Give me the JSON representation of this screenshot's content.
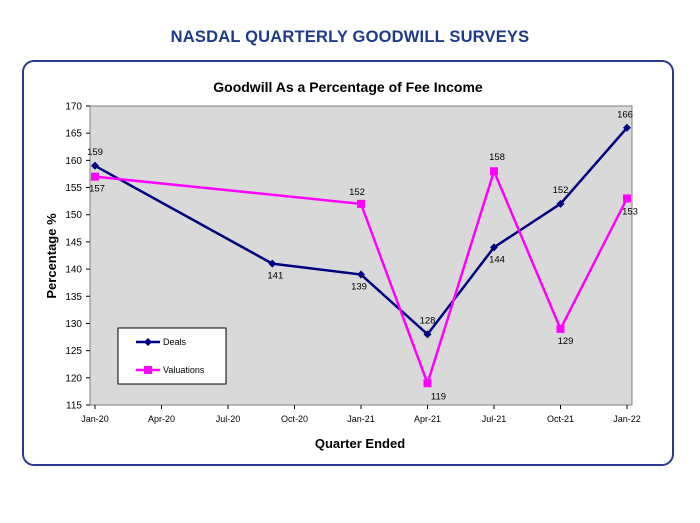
{
  "page": {
    "title": "NASDAL QUARTERLY GOODWILL SURVEYS"
  },
  "colors": {
    "title": "#1f3a8a",
    "frame_border": "#2b3a8c",
    "plot_bg": "#d9d9d9",
    "deals": "#000080",
    "valuations": "#ff00ff"
  },
  "chart_data": {
    "type": "line",
    "title": "Goodwill As a Percentage of Fee Income",
    "xlabel": "Quarter Ended",
    "ylabel": "Percentage %",
    "ylim": [
      115,
      170
    ],
    "yticks": [
      115,
      120,
      125,
      130,
      135,
      140,
      145,
      150,
      155,
      160,
      165,
      170
    ],
    "xticks": [
      "Jan-20",
      "Apr-20",
      "Jul-20",
      "Oct-20",
      "Jan-21",
      "Apr-21",
      "Jul-21",
      "Oct-21",
      "Jan-22"
    ],
    "grid": false,
    "legend_position": "bottom-left",
    "series": [
      {
        "name": "Deals",
        "color": "#000080",
        "marker": "diamond",
        "points": [
          {
            "x": "Jan-20",
            "y": 159
          },
          {
            "x": "Sep-20",
            "y": 141
          },
          {
            "x": "Jan-21",
            "y": 139
          },
          {
            "x": "Apr-21",
            "y": 128
          },
          {
            "x": "Jul-21",
            "y": 144
          },
          {
            "x": "Oct-21",
            "y": 152
          },
          {
            "x": "Jan-22",
            "y": 166
          }
        ]
      },
      {
        "name": "Valuations",
        "color": "#ff00ff",
        "marker": "square",
        "points": [
          {
            "x": "Jan-20",
            "y": 157
          },
          {
            "x": "Jan-21",
            "y": 152
          },
          {
            "x": "Apr-21",
            "y": 119
          },
          {
            "x": "Jul-21",
            "y": 158
          },
          {
            "x": "Oct-21",
            "y": 129
          },
          {
            "x": "Jan-22",
            "y": 153
          }
        ]
      }
    ]
  }
}
